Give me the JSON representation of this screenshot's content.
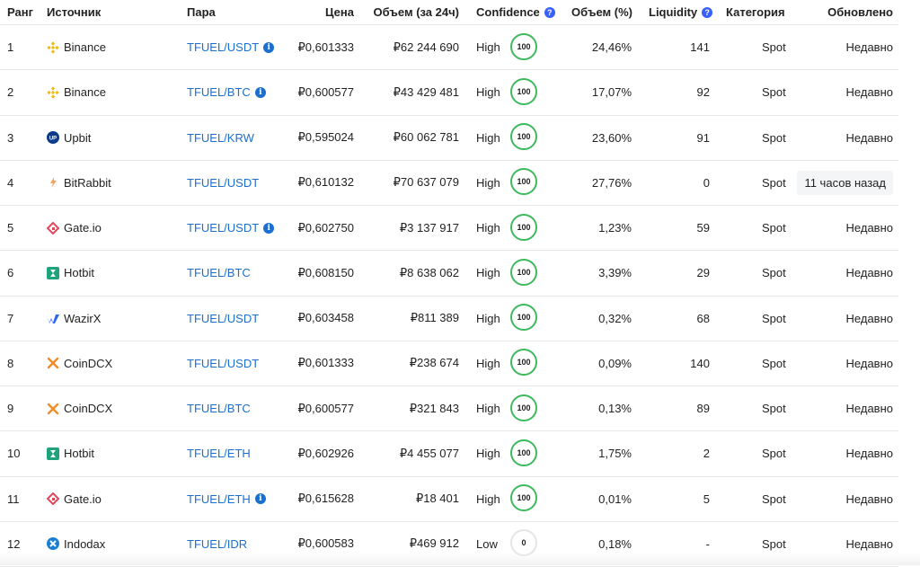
{
  "header": {
    "rank": "Ранг",
    "source": "Источник",
    "pair": "Пара",
    "price": "Цена",
    "volume24": "Объем (за 24ч)",
    "confidence": "Confidence",
    "volume_pct": "Объем (%)",
    "liquidity": "Liquidity",
    "category": "Категория",
    "updated": "Обновлено",
    "help_glyph": "?"
  },
  "colors": {
    "link": "#1a6fcf",
    "ring_high": "#3fb95e",
    "ring_low": "#e5e5e5",
    "help_icon": "#3861fb"
  },
  "rows": [
    {
      "rank": "1",
      "source": "Binance",
      "icon": "binance-icon",
      "pair": "TFUEL/USDT",
      "info": true,
      "price": "₽0,601333",
      "volume": "₽62 244 690",
      "confidence": "High",
      "score": "100",
      "volume_pct": "24,46%",
      "liquidity": "141",
      "category": "Spot",
      "updated": "Недавно"
    },
    {
      "rank": "2",
      "source": "Binance",
      "icon": "binance-icon",
      "pair": "TFUEL/BTC",
      "info": true,
      "price": "₽0,600577",
      "volume": "₽43 429 481",
      "confidence": "High",
      "score": "100",
      "volume_pct": "17,07%",
      "liquidity": "92",
      "category": "Spot",
      "updated": "Недавно"
    },
    {
      "rank": "3",
      "source": "Upbit",
      "icon": "upbit-icon",
      "pair": "TFUEL/KRW",
      "info": false,
      "price": "₽0,595024",
      "volume": "₽60 062 781",
      "confidence": "High",
      "score": "100",
      "volume_pct": "23,60%",
      "liquidity": "91",
      "category": "Spot",
      "updated": "Недавно"
    },
    {
      "rank": "4",
      "source": "BitRabbit",
      "icon": "bitrabbit-icon",
      "pair": "TFUEL/USDT",
      "info": false,
      "price": "₽0,610132",
      "volume": "₽70 637 079",
      "confidence": "High",
      "score": "100",
      "volume_pct": "27,76%",
      "liquidity": "0",
      "category": "Spot",
      "updated": "11 часов назад",
      "highlight": true
    },
    {
      "rank": "5",
      "source": "Gate.io",
      "icon": "gateio-icon",
      "pair": "TFUEL/USDT",
      "info": true,
      "price": "₽0,602750",
      "volume": "₽3 137 917",
      "confidence": "High",
      "score": "100",
      "volume_pct": "1,23%",
      "liquidity": "59",
      "category": "Spot",
      "updated": "Недавно"
    },
    {
      "rank": "6",
      "source": "Hotbit",
      "icon": "hotbit-icon",
      "pair": "TFUEL/BTC",
      "info": false,
      "price": "₽0,608150",
      "volume": "₽8 638 062",
      "confidence": "High",
      "score": "100",
      "volume_pct": "3,39%",
      "liquidity": "29",
      "category": "Spot",
      "updated": "Недавно"
    },
    {
      "rank": "7",
      "source": "WazirX",
      "icon": "wazirx-icon",
      "pair": "TFUEL/USDT",
      "info": false,
      "price": "₽0,603458",
      "volume": "₽811 389",
      "confidence": "High",
      "score": "100",
      "volume_pct": "0,32%",
      "liquidity": "68",
      "category": "Spot",
      "updated": "Недавно"
    },
    {
      "rank": "8",
      "source": "CoinDCX",
      "icon": "coindcx-icon",
      "pair": "TFUEL/USDT",
      "info": false,
      "price": "₽0,601333",
      "volume": "₽238 674",
      "confidence": "High",
      "score": "100",
      "volume_pct": "0,09%",
      "liquidity": "140",
      "category": "Spot",
      "updated": "Недавно"
    },
    {
      "rank": "9",
      "source": "CoinDCX",
      "icon": "coindcx-icon",
      "pair": "TFUEL/BTC",
      "info": false,
      "price": "₽0,600577",
      "volume": "₽321 843",
      "confidence": "High",
      "score": "100",
      "volume_pct": "0,13%",
      "liquidity": "89",
      "category": "Spot",
      "updated": "Недавно"
    },
    {
      "rank": "10",
      "source": "Hotbit",
      "icon": "hotbit-icon",
      "pair": "TFUEL/ETH",
      "info": false,
      "price": "₽0,602926",
      "volume": "₽4 455 077",
      "confidence": "High",
      "score": "100",
      "volume_pct": "1,75%",
      "liquidity": "2",
      "category": "Spot",
      "updated": "Недавно"
    },
    {
      "rank": "11",
      "source": "Gate.io",
      "icon": "gateio-icon",
      "pair": "TFUEL/ETH",
      "info": true,
      "price": "₽0,615628",
      "volume": "₽18 401",
      "confidence": "High",
      "score": "100",
      "volume_pct": "0,01%",
      "liquidity": "5",
      "category": "Spot",
      "updated": "Недавно"
    },
    {
      "rank": "12",
      "source": "Indodax",
      "icon": "indodax-icon",
      "pair": "TFUEL/IDR",
      "info": false,
      "price": "₽0,600583",
      "volume": "₽469 912",
      "confidence": "Low",
      "score": "0",
      "volume_pct": "0,18%",
      "liquidity": "-",
      "category": "Spot",
      "updated": "Недавно"
    }
  ]
}
